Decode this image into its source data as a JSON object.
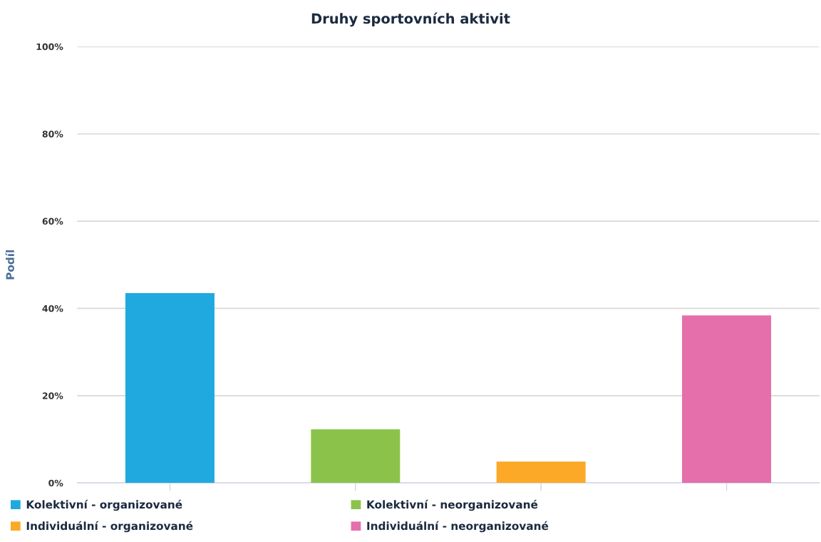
{
  "chart_data": {
    "type": "bar",
    "title": "Druhy sportovních aktivit",
    "ylabel": "Podíl",
    "categories": [
      null,
      null,
      null,
      null
    ],
    "series": [
      {
        "name": "Kolektivní - organizované",
        "color": "#1fa9de",
        "values": [
          43.5,
          null,
          null,
          null
        ]
      },
      {
        "name": "Kolektivní - neorganizované",
        "color": "#8bc34a",
        "values": [
          null,
          12.3,
          null,
          null
        ]
      },
      {
        "name": "Individuální - organizované",
        "color": "#fba926",
        "values": [
          null,
          null,
          4.9,
          null
        ]
      },
      {
        "name": "Individuální - neorganizované",
        "color": "#e56fab",
        "values": [
          null,
          null,
          null,
          38.4
        ]
      }
    ],
    "ylim": [
      0,
      100
    ],
    "yticks": [
      {
        "value": 0,
        "label": "0%"
      },
      {
        "value": 20,
        "label": "20%"
      },
      {
        "value": 40,
        "label": "40%"
      },
      {
        "value": 60,
        "label": "60%"
      },
      {
        "value": 80,
        "label": "80%"
      },
      {
        "value": 100,
        "label": "100%"
      }
    ],
    "grid": "y",
    "legend": "bottom"
  }
}
